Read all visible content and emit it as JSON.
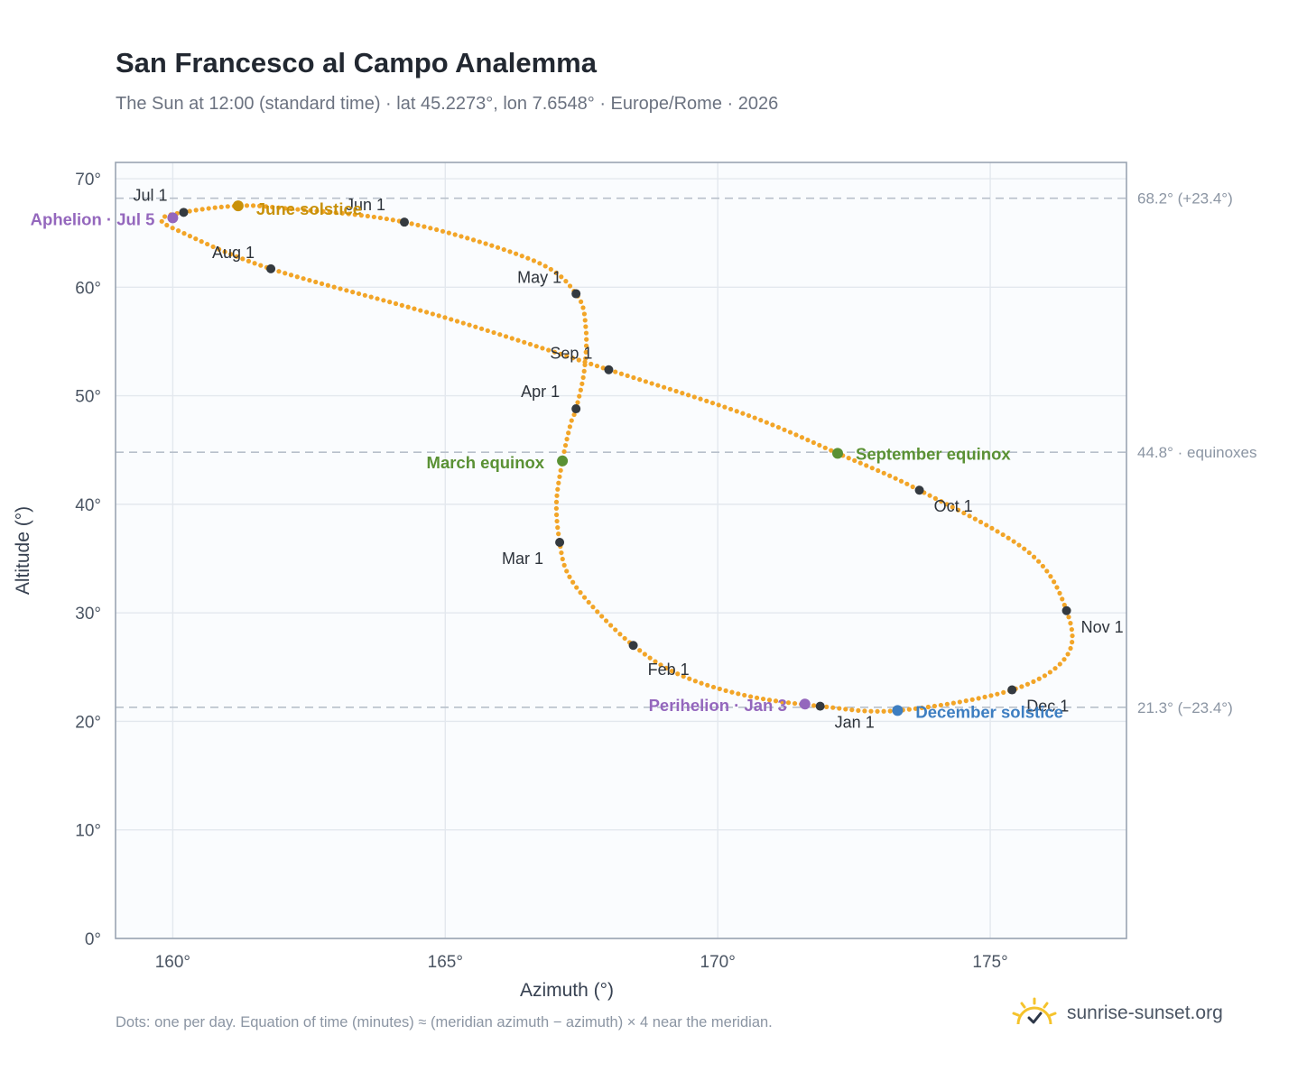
{
  "title": "San Francesco al Campo Analemma",
  "subtitle": "The Sun at 12:00 (standard time) · lat 45.2273°, lon 7.6548° · Europe/Rome · 2026",
  "footnote": "Dots: one per day. Equation of time (minutes) ≈ (meridian azimuth − azimuth) × 4 near the meridian.",
  "brand": {
    "name": "sunrise-sunset.org",
    "icon": "sun-logo-icon"
  },
  "colors": {
    "path": "#f2a528",
    "month_dot": "#343a40",
    "solstice_june": "#c8910a",
    "solstice_december": "#3d7ec1",
    "equinox": "#5a9134",
    "apsis": "#9467bd",
    "reference_line": "#b8c0ca",
    "plot_bg": "#fafcfe",
    "grid": "#e3e8ee"
  },
  "chart_data": {
    "type": "scatter",
    "title": "San Francesco al Campo Analemma",
    "subtitle": "The Sun at 12:00 (standard time) · lat 45.2273°, lon 7.6548° · Europe/Rome · 2026",
    "xlabel": "Azimuth (°)",
    "ylabel": "Altitude (°)",
    "xlim": [
      158.95,
      177.5
    ],
    "ylim": [
      0,
      71.5
    ],
    "x_ticks": [
      160,
      165,
      170,
      175
    ],
    "x_tick_labels": [
      "160°",
      "165°",
      "170°",
      "175°"
    ],
    "y_ticks": [
      0,
      10,
      20,
      30,
      40,
      50,
      60,
      70
    ],
    "y_tick_labels": [
      "0°",
      "10°",
      "20°",
      "30°",
      "40°",
      "50°",
      "60°",
      "70°"
    ],
    "grid": true,
    "analemma_path": [
      [
        171.88,
        21.4
      ],
      [
        170.5,
        22.4
      ],
      [
        169.3,
        24.3
      ],
      [
        168.45,
        27.0
      ],
      [
        167.7,
        30.6
      ],
      [
        167.25,
        33.6
      ],
      [
        167.1,
        36.5
      ],
      [
        167.04,
        40.1
      ],
      [
        167.15,
        44.0
      ],
      [
        167.3,
        47.4
      ],
      [
        167.4,
        48.8
      ],
      [
        167.55,
        52.3
      ],
      [
        167.58,
        56.2
      ],
      [
        167.4,
        59.4
      ],
      [
        166.6,
        62.5
      ],
      [
        164.25,
        66.0
      ],
      [
        162.0,
        67.3
      ],
      [
        161.2,
        67.5
      ],
      [
        160.3,
        67.0
      ],
      [
        159.8,
        66.3
      ],
      [
        160.15,
        65.1
      ],
      [
        161.8,
        61.7
      ],
      [
        165.0,
        57.2
      ],
      [
        168.0,
        52.4
      ],
      [
        170.5,
        48.3
      ],
      [
        172.2,
        44.7
      ],
      [
        173.7,
        41.3
      ],
      [
        175.7,
        35.6
      ],
      [
        176.4,
        30.2
      ],
      [
        176.4,
        26.0
      ],
      [
        175.4,
        22.9
      ],
      [
        173.3,
        21.0
      ],
      [
        171.88,
        21.4
      ]
    ],
    "month_markers": [
      {
        "label": "Jan 1",
        "az": 171.88,
        "alt": 21.4
      },
      {
        "label": "Feb 1",
        "az": 168.45,
        "alt": 27.0
      },
      {
        "label": "Mar 1",
        "az": 167.1,
        "alt": 36.5
      },
      {
        "label": "Apr 1",
        "az": 167.4,
        "alt": 48.8
      },
      {
        "label": "May 1",
        "az": 167.4,
        "alt": 59.4
      },
      {
        "label": "Jun 1",
        "az": 164.25,
        "alt": 66.0
      },
      {
        "label": "Jul 1",
        "az": 160.2,
        "alt": 66.9
      },
      {
        "label": "Aug 1",
        "az": 161.8,
        "alt": 61.7
      },
      {
        "label": "Sep 1",
        "az": 168.0,
        "alt": 52.4
      },
      {
        "label": "Oct 1",
        "az": 173.7,
        "alt": 41.3
      },
      {
        "label": "Nov 1",
        "az": 176.4,
        "alt": 30.2
      },
      {
        "label": "Dec 1",
        "az": 175.4,
        "alt": 22.9
      }
    ],
    "events": [
      {
        "label": "June solstice",
        "az": 161.2,
        "alt": 67.5,
        "kind": "solstice_june"
      },
      {
        "label": "December solstice",
        "az": 173.3,
        "alt": 21.0,
        "kind": "solstice_december"
      },
      {
        "label": "March equinox",
        "az": 167.15,
        "alt": 44.0,
        "kind": "equinox"
      },
      {
        "label": "September equinox",
        "az": 172.2,
        "alt": 44.7,
        "kind": "equinox"
      },
      {
        "label": "Aphelion · Jul 5",
        "az": 160.0,
        "alt": 66.4,
        "kind": "apsis"
      },
      {
        "label": "Perihelion · Jan 3",
        "az": 171.6,
        "alt": 21.6,
        "kind": "apsis"
      }
    ],
    "reference_lines": [
      {
        "alt": 68.2,
        "label": "68.2° (+23.4°)"
      },
      {
        "alt": 44.8,
        "label": "44.8° · equinoxes"
      },
      {
        "alt": 21.3,
        "label": "21.3° (−23.4°)"
      }
    ]
  }
}
